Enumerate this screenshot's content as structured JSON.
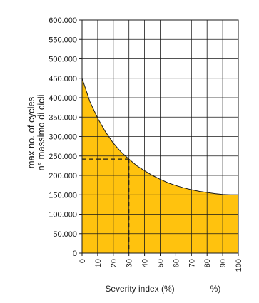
{
  "chart_data": {
    "type": "area",
    "title": "",
    "xlabel": "Severity index (%)",
    "xlabel_unit": "%)",
    "ylabel_lines": [
      "max no. of cycles",
      "n° massimo di cicli"
    ],
    "x_ticks": [
      "0",
      "10",
      "20",
      "30",
      "40",
      "50",
      "60",
      "70",
      "80",
      "90",
      "100"
    ],
    "y_ticks": [
      "0",
      "50.000",
      "100.000",
      "150.000",
      "200.000",
      "250.000",
      "300.000",
      "350.000",
      "400.000",
      "450.000",
      "500.000",
      "550.000",
      "600.000"
    ],
    "xlim": [
      0,
      100
    ],
    "ylim": [
      0,
      600000
    ],
    "grid": true,
    "fill_color": "#ffc20e",
    "line_color": "#1a1a1a",
    "series": [
      {
        "x": [
          0,
          5,
          10,
          15,
          20,
          25,
          30,
          35,
          40,
          45,
          50,
          55,
          60,
          65,
          70,
          75,
          80,
          85,
          90,
          95,
          100
        ],
        "values": [
          450000,
          390000,
          347000,
          312000,
          283000,
          260000,
          242000,
          225000,
          212000,
          200000,
          190000,
          181000,
          174000,
          168000,
          163000,
          159000,
          156000,
          153000,
          151000,
          150000,
          150000
        ]
      }
    ],
    "reference": {
      "x": 30,
      "y": 242000,
      "style": "dashed"
    }
  }
}
